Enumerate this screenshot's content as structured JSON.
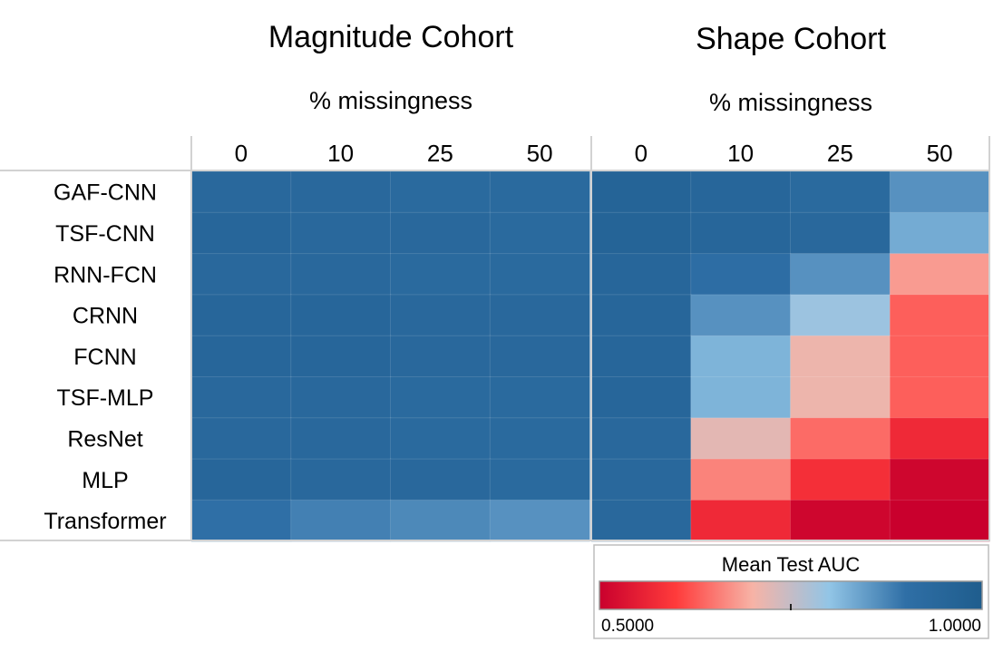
{
  "chart_data": {
    "type": "heatmap",
    "legend": {
      "title": "Mean Test AUC",
      "min": 0.5,
      "max": 1.0,
      "min_label": "0.5000",
      "max_label": "1.0000",
      "placement": "bottom-right",
      "colors": [
        "#c9002d",
        "#ff3b3b",
        "#f7b3a6",
        "#92c5e6",
        "#2f6fa6",
        "#1f5d8d"
      ]
    },
    "rows": [
      "GAF-CNN",
      "TSF-CNN",
      "RNN-FCN",
      "CRNN",
      "FCNN",
      "TSF-MLP",
      "ResNet",
      "MLP",
      "Transformer"
    ],
    "panels": [
      {
        "title": "Magnitude Cohort",
        "xlabel": "% missingness",
        "columns": [
          "0",
          "10",
          "25",
          "50"
        ],
        "values": [
          [
            0.94,
            0.94,
            0.93,
            0.93
          ],
          [
            0.95,
            0.94,
            0.94,
            0.93
          ],
          [
            0.94,
            0.94,
            0.93,
            0.93
          ],
          [
            0.95,
            0.95,
            0.94,
            0.94
          ],
          [
            0.95,
            0.95,
            0.94,
            0.94
          ],
          [
            0.94,
            0.94,
            0.93,
            0.93
          ],
          [
            0.94,
            0.94,
            0.93,
            0.93
          ],
          [
            0.95,
            0.94,
            0.94,
            0.93
          ],
          [
            0.9,
            0.88,
            0.87,
            0.86
          ]
        ]
      },
      {
        "title": "Shape Cohort",
        "xlabel": "% missingness",
        "columns": [
          "0",
          "10",
          "25",
          "50"
        ],
        "values": [
          [
            0.96,
            0.95,
            0.93,
            0.86
          ],
          [
            0.96,
            0.95,
            0.94,
            0.83
          ],
          [
            0.95,
            0.91,
            0.86,
            0.68
          ],
          [
            0.95,
            0.86,
            0.79,
            0.63
          ],
          [
            0.95,
            0.82,
            0.71,
            0.63
          ],
          [
            0.95,
            0.82,
            0.71,
            0.63
          ],
          [
            0.94,
            0.72,
            0.64,
            0.57
          ],
          [
            0.94,
            0.66,
            0.58,
            0.51
          ],
          [
            0.94,
            0.57,
            0.51,
            0.5
          ]
        ]
      }
    ]
  }
}
